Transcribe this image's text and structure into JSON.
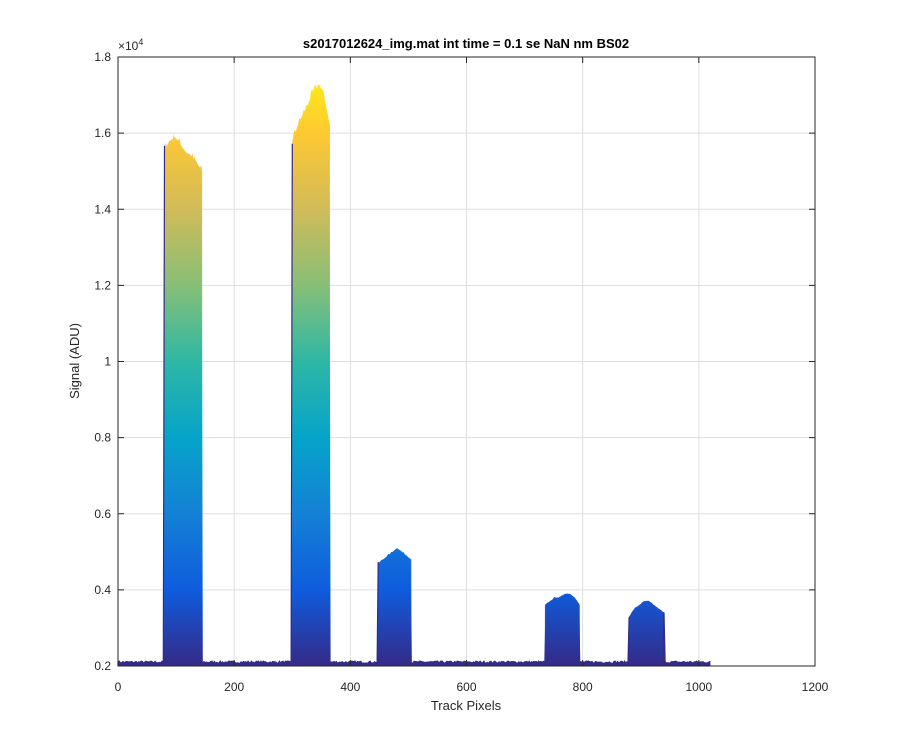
{
  "chart_data": {
    "type": "area",
    "title": "s2017012624_img.mat int time = 0.1 se  NaN nm BS02",
    "xlabel": "Track Pixels",
    "ylabel": "Signal (ADU)",
    "y_exponent_label": "×10",
    "y_exponent_power": "4",
    "xlim": [
      0,
      1200
    ],
    "ylim": [
      0.2,
      1.8
    ],
    "y_scale_factor": 10000,
    "xticks": [
      0,
      200,
      400,
      600,
      800,
      1000,
      1200
    ],
    "xtick_labels": [
      "0",
      "200",
      "400",
      "600",
      "800",
      "1000",
      "1200"
    ],
    "yticks": [
      0.2,
      0.4,
      0.6,
      0.8,
      1.0,
      1.2,
      1.4,
      1.6,
      1.8
    ],
    "ytick_labels": [
      "0.2",
      "0.4",
      "0.6",
      "0.8",
      "1",
      "1.2",
      "1.4",
      "1.6",
      "1.8"
    ],
    "grid": true,
    "colormap": "parula",
    "colormap_colors": [
      "#352a87",
      "#0f5cdd",
      "#1481d6",
      "#06a4ca",
      "#2eb7a4",
      "#87bf77",
      "#d1bb59",
      "#fec832",
      "#f9fb0e"
    ],
    "baseline": 0.21,
    "data_x_range": [
      0,
      1020
    ],
    "peaks": [
      {
        "x_start": 80,
        "x_end": 145,
        "peak_value": 1.59,
        "shape": [
          1.56,
          1.58,
          1.59,
          1.57,
          1.55,
          1.54,
          1.52,
          1.5
        ]
      },
      {
        "x_start": 300,
        "x_end": 365,
        "peak_value": 1.73,
        "shape": [
          1.58,
          1.62,
          1.65,
          1.68,
          1.71,
          1.73,
          1.69,
          1.62
        ]
      },
      {
        "x_start": 448,
        "x_end": 505,
        "peak_value": 0.51,
        "shape": [
          0.47,
          0.48,
          0.49,
          0.5,
          0.51,
          0.5,
          0.49,
          0.48
        ]
      },
      {
        "x_start": 735,
        "x_end": 795,
        "peak_value": 0.39,
        "shape": [
          0.36,
          0.37,
          0.38,
          0.38,
          0.39,
          0.39,
          0.38,
          0.36
        ]
      },
      {
        "x_start": 880,
        "x_end": 940,
        "peak_value": 0.37,
        "shape": [
          0.33,
          0.35,
          0.36,
          0.37,
          0.37,
          0.36,
          0.35,
          0.34
        ]
      }
    ]
  }
}
